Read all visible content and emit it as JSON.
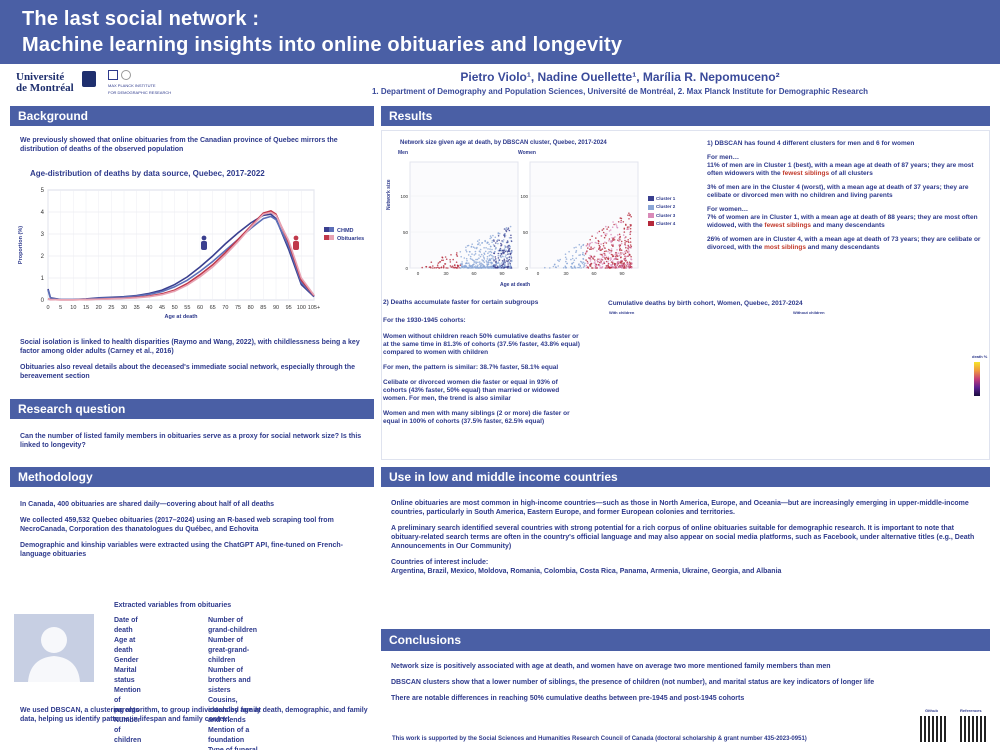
{
  "banner": {
    "title_line1": "The last social network :",
    "title_line2": "Machine learning insights into online obituaries and longevity"
  },
  "logos": {
    "udem_line1": "Université",
    "udem_line2": "de Montréal",
    "mpi_line1": "MAX PLANCK INSTITUTE",
    "mpi_line2": "FOR DEMOGRAPHIC RESEARCH"
  },
  "authors": {
    "names": "Pietro Violo¹, Nadine Ouellette¹, Marília R. Nepomuceno²",
    "affiliations": "1. Department of Demography and Population Sciences, Université de Montréal, 2. Max Planck Institute for Demographic Research"
  },
  "background": {
    "heading": "Background",
    "p1": "We previously showed that online obituaries from the Canadian province of Quebec mirrors the distribution of deaths of the observed population",
    "chart_title": "Age-distribution of deaths by data source, Quebec, 2017-2022",
    "p2": "Social isolation is linked to health disparities (Raymo and Wang, 2022), with childlessness being a key factor among older adults (Carney et al., 2016)",
    "p3": "Obituaries also reveal details about the deceased's immediate social network, especially through the bereavement section"
  },
  "research_question": {
    "heading": "Research question",
    "text": "Can the number of listed family members in obituaries serve as a proxy for social network size? Is this linked to longevity?"
  },
  "methodology": {
    "heading": "Methodology",
    "p1": "In Canada, 400 obituaries are shared daily—covering about half of all deaths",
    "p2": "We collected 459,532 Quebec obituaries (2017–2024) using an R-based web scraping tool from NecroCanada, Corporation des thanatologues du Québec, and Echovita",
    "p3": "Demographic and kinship variables were extracted using the ChatGPT API, fine-tuned on French-language obituaries",
    "vars_title": "Extracted variables from obituaries",
    "vars_col1": [
      "Date of death",
      "Age at death",
      "Gender",
      "Marital status",
      "Mention of parents",
      "Number of children"
    ],
    "vars_col2": [
      "Number of grand-children",
      "Number of great-grand-children",
      "Number of brothers and sisters",
      "Cousins, extended family and friends",
      "Mention of a foundation",
      "Type of funeral commemoration"
    ],
    "p4": "We used DBSCAN, a clustering algorithm, to group individuals by age at death, demographic, and family data, helping us identify patterns in lifespan and family context"
  },
  "results": {
    "heading": "Results",
    "scatter_title": "Network size given age at death, by DBSCAN cluster, Quebec, 2017-2024",
    "scatter_men": "Men",
    "scatter_women": "Women",
    "scatter_xlabel": "Age at death",
    "scatter_ylabel": "Network size",
    "scatter_yticks": [
      "0",
      "50",
      "100"
    ],
    "scatter_xticks": [
      "0",
      "30",
      "60",
      "90"
    ],
    "clusters": [
      "Cluster 1",
      "Cluster 2",
      "Cluster 3",
      "Cluster 4"
    ],
    "cluster_colors": [
      "#3a3f8f",
      "#8aa6d6",
      "#d98ab8",
      "#b5283a"
    ],
    "dbscan_title": "1) DBSCAN has found 4 different clusters for men and 6 for women",
    "men_label": "For men…",
    "men_p1_a": "11% of men are in Cluster 1 (best), with a mean age at death of 87 years; they are most often widowers with the ",
    "men_p1_hl": "fewest siblings",
    "men_p1_b": " of all clusters",
    "men_p2": "3% of men are in the Cluster 4 (worst), with a mean age at death of 37 years; they are celibate or divorced men with no children and living parents",
    "women_label": "For women…",
    "women_p1_a": "7% of women are in Cluster 1, with a mean age at death of 88 years; they are most often widowed, with the ",
    "women_p1_hl": "fewest siblings",
    "women_p1_b": " and many descendants",
    "women_p2_a": "26% of women are in Cluster 4, with a mean age at death of 73 years; they are celibate or divorced, with the ",
    "women_p2_hl": "most siblings",
    "women_p2_b": " and many descendants",
    "accum_title": "2) Deaths accumulate faster for certain subgroups",
    "accum_p0": "For the 1930-1945 cohorts:",
    "accum_p1": "Women without children reach 50% cumulative deaths faster or at the same time in 81.3% of cohorts (37.5% faster, 43.8% equal) compared to women with children",
    "accum_p2": "For men, the pattern is similar: 38.7% faster, 58.1% equal",
    "accum_p3": "Celibate or divorced women die faster or equal in 93% of cohorts (43% faster, 50% equal) than married or widowed women. For men, the trend is also similar",
    "accum_p4": "Women and men with many siblings (2 or more) die faster or equal in 100% of cohorts (37.5% faster, 62.5% equal)",
    "heat_title": "Cumulative deaths by birth cohort, Women, Quebec, 2017-2024",
    "heat_left": "With children",
    "heat_right": "Without children",
    "heat_ylabel": "Cohort",
    "heat_legend": "death %"
  },
  "lmic": {
    "heading": "Use in low and middle income countries",
    "p1": "Online obituaries are most common in high-income countries—such as those in North America, Europe, and Oceania—but are increasingly emerging in upper-middle-income countries, particularly in South America, Eastern Europe, and former European colonies and territories.",
    "p2": "A preliminary search identified several countries with strong potential for a rich corpus of online obituaries suitable for demographic research. It is important to note that obituary-related search terms are often in the country's official language and may also appear on social media platforms, such as Facebook, under alternative titles (e.g., Death Announcements in Our Community)",
    "p3a": "Countries of interest include:",
    "p3b": "Argentina, Brazil, Mexico, Moldova, Romania, Colombia, Costa Rica, Panama, Armenia, Ukraine, Georgia, and Albania"
  },
  "conclusions": {
    "heading": "Conclusions",
    "p1": "Network size is positively associated with age at death, and women have on average two more mentioned family members than men",
    "p2": "DBSCAN clusters show that a lower number of siblings, the presence of children (not number), and marital status are key indicators of longer life",
    "p3": "There are notable differences in reaching 50% cumulative deaths between pre-1945 and post-1945 cohorts",
    "funding": "This work is supported by the Social Sciences and Humanities Research Council of Canada (doctoral scholarship & grant number 435-2023-0951)",
    "qr1_label": "Github",
    "qr2_label": "References"
  },
  "chart_data": {
    "type": "line",
    "title": "Age-distribution of deaths by data source, Quebec, 2017-2022",
    "xlabel": "Age at death",
    "ylabel": "Proportion (%)",
    "ylim": [
      0,
      5
    ],
    "yticks": [
      0,
      1,
      2,
      3,
      4,
      5
    ],
    "xticks": [
      "0",
      "5",
      "10",
      "15",
      "20",
      "25",
      "30",
      "35",
      "40",
      "45",
      "50",
      "55",
      "60",
      "65",
      "70",
      "75",
      "80",
      "85",
      "90",
      "95",
      "100",
      "105+"
    ],
    "x": [
      0,
      1,
      5,
      10,
      15,
      20,
      25,
      30,
      35,
      40,
      45,
      50,
      55,
      60,
      65,
      70,
      75,
      80,
      85,
      88,
      90,
      95,
      100,
      105
    ],
    "series": [
      {
        "name": "CHMD",
        "color": "#3a3f8f",
        "values": [
          0.5,
          0.1,
          0.02,
          0.02,
          0.05,
          0.1,
          0.12,
          0.15,
          0.2,
          0.3,
          0.45,
          0.7,
          1.05,
          1.5,
          2.0,
          2.55,
          3.05,
          3.5,
          3.85,
          3.9,
          3.7,
          2.3,
          0.7,
          0.15
        ]
      },
      {
        "name": "CHMD",
        "color": "#5c6fb8",
        "values": [
          0.45,
          0.08,
          0.02,
          0.02,
          0.04,
          0.08,
          0.1,
          0.13,
          0.18,
          0.26,
          0.38,
          0.6,
          0.9,
          1.3,
          1.75,
          2.25,
          2.75,
          3.25,
          3.7,
          3.8,
          3.65,
          2.45,
          0.8,
          0.18
        ]
      },
      {
        "name": "Obituaries",
        "color": "#c0394b",
        "values": [
          0.05,
          0.02,
          0.01,
          0.01,
          0.02,
          0.04,
          0.06,
          0.08,
          0.12,
          0.18,
          0.28,
          0.45,
          0.75,
          1.15,
          1.6,
          2.15,
          2.75,
          3.35,
          3.95,
          4.05,
          3.9,
          2.6,
          0.9,
          0.2
        ]
      },
      {
        "name": "Obituaries",
        "color": "#e8a4b4",
        "values": [
          0.04,
          0.02,
          0.01,
          0.01,
          0.02,
          0.03,
          0.05,
          0.07,
          0.1,
          0.15,
          0.24,
          0.4,
          0.68,
          1.05,
          1.5,
          2.05,
          2.65,
          3.3,
          3.9,
          3.98,
          3.85,
          2.7,
          1.0,
          0.22
        ]
      }
    ]
  }
}
